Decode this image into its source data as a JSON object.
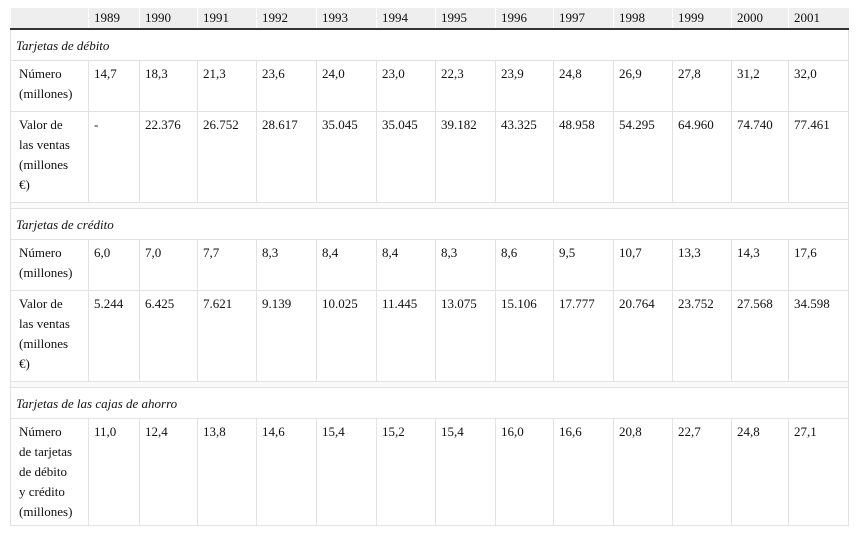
{
  "header": {
    "years": [
      "1989",
      "1990",
      "1991",
      "1992",
      "1993",
      "1994",
      "1995",
      "1996",
      "1997",
      "1998",
      "1999",
      "2000",
      "2001"
    ]
  },
  "sections": [
    {
      "title": "Tarjetas de débito",
      "rows": [
        {
          "label": [
            "Número",
            "(millones)"
          ],
          "values": [
            "14,7",
            "18,3",
            "21,3",
            "23,6",
            "24,0",
            "23,0",
            "22,3",
            "23,9",
            "24,8",
            "26,9",
            "27,8",
            "31,2",
            "32,0"
          ]
        },
        {
          "label": [
            "Valor de",
            "las ventas",
            "(millones",
            "€)"
          ],
          "values": [
            "-",
            "22.376",
            "26.752",
            "28.617",
            "35.045",
            "35.045",
            "39.182",
            "43.325",
            "48.958",
            "54.295",
            "64.960",
            "74.740",
            "77.461"
          ]
        }
      ]
    },
    {
      "title": "Tarjetas de crédito",
      "rows": [
        {
          "label": [
            "Número",
            "(millones)"
          ],
          "values": [
            "6,0",
            "7,0",
            "7,7",
            "8,3",
            "8,4",
            "8,4",
            "8,3",
            "8,6",
            "9,5",
            "10,7",
            "13,3",
            "14,3",
            "17,6"
          ]
        },
        {
          "label": [
            "Valor de",
            "las ventas",
            "(millones",
            "€)"
          ],
          "values": [
            "5.244",
            "6.425",
            "7.621",
            "9.139",
            "10.025",
            "11.445",
            "13.075",
            "15.106",
            "17.777",
            "20.764",
            "23.752",
            "27.568",
            "34.598"
          ]
        }
      ]
    },
    {
      "title": "Tarjetas de las cajas de ahorro",
      "rows": [
        {
          "label": [
            "Número",
            "de tarjetas",
            "de débito",
            "y crédito",
            "(millones)"
          ],
          "values": [
            "11,0",
            "12,4",
            "13,8",
            "14,6",
            "15,4",
            "15,2",
            "15,4",
            "16,0",
            "16,6",
            "20,8",
            "22,7",
            "24,8",
            "27,1"
          ]
        }
      ]
    }
  ]
}
